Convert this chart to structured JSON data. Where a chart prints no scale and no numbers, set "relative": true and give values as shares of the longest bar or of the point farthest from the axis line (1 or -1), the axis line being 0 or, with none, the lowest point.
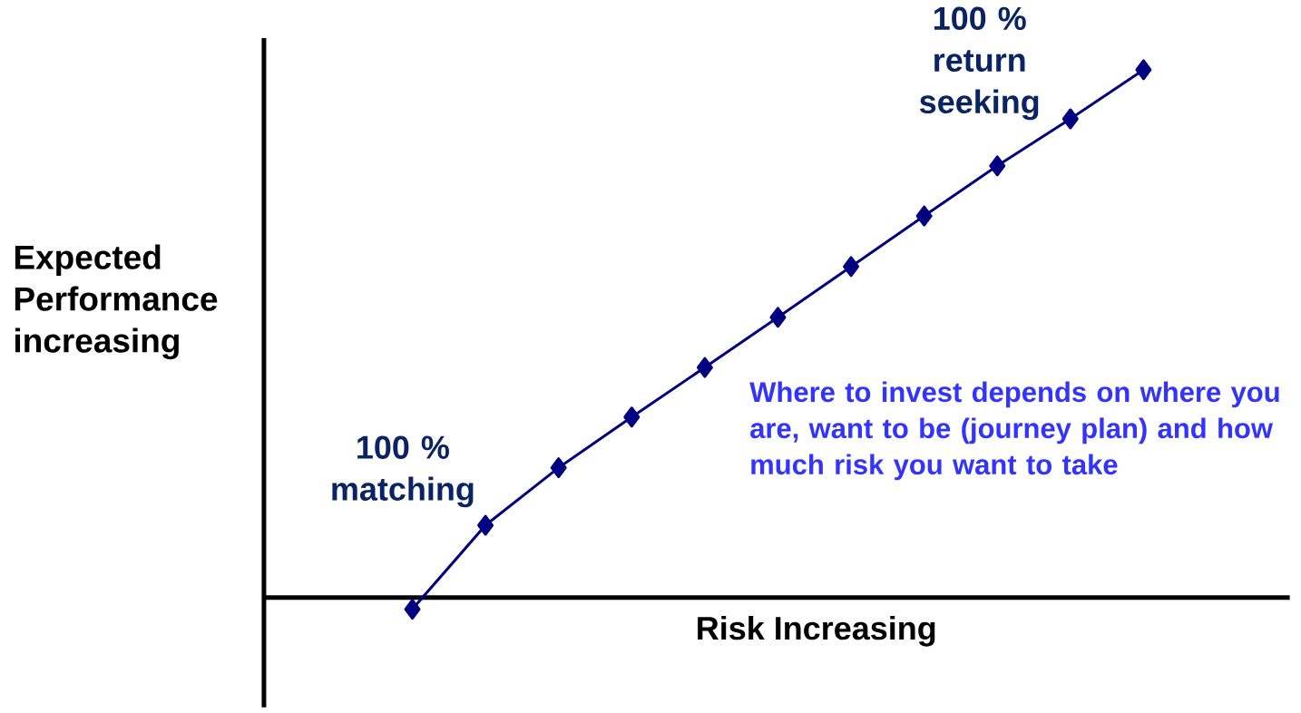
{
  "chart_data": {
    "type": "line",
    "relative": true,
    "marker": "diamond",
    "line_style": "solid",
    "xlabel": "Risk Increasing",
    "ylabel": "Expected Performance increasing",
    "categories": [
      null,
      null,
      null,
      null,
      null,
      null,
      null,
      null,
      null,
      null,
      null
    ],
    "series": [
      {
        "color": "#000080",
        "values": [
          -0.022,
          0.137,
          0.246,
          0.342,
          0.436,
          0.531,
          0.627,
          0.723,
          0.818,
          0.907,
          1
        ]
      }
    ],
    "annotations": [
      "100 % matching",
      "100 % return seeking",
      "Where to invest depends on where  you are, want to be (journey plan) and how much risk you want to take"
    ]
  }
}
